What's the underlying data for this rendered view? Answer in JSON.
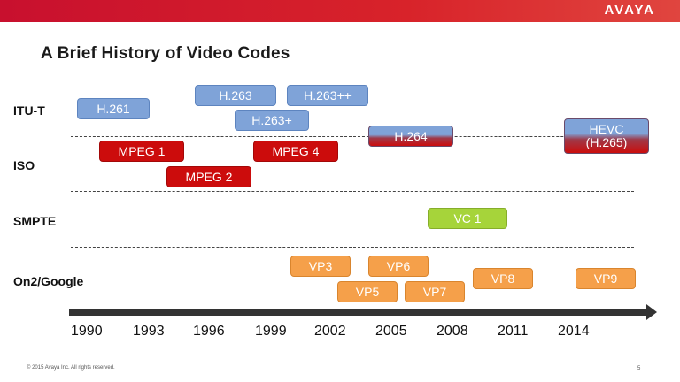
{
  "header": {
    "logo": "AVAYA"
  },
  "slide": {
    "title": "A Brief History of Video Codes"
  },
  "rows": {
    "itu": "ITU-T",
    "iso": "ISO",
    "smpte": "SMPTE",
    "google": "On2/Google"
  },
  "codecs": {
    "h261": "H.261",
    "h263": "H.263",
    "h263pp": "H.263++",
    "h263p": "H.263+",
    "h264": "H.264",
    "hevc_line1": "HEVC",
    "hevc_line2": "(H.265)",
    "mpeg1": "MPEG 1",
    "mpeg2": "MPEG 2",
    "mpeg4": "MPEG 4",
    "vc1": "VC 1",
    "vp3": "VP3",
    "vp5": "VP5",
    "vp6": "VP6",
    "vp7": "VP7",
    "vp8": "VP8",
    "vp9": "VP9"
  },
  "timeline": {
    "years": [
      "1990",
      "1993",
      "1996",
      "1999",
      "2002",
      "2005",
      "2008",
      "2011",
      "2014"
    ]
  },
  "colors": {
    "brand": "#cc0c0c",
    "itu": "#7fa3d8",
    "iso": "#cc0c0c",
    "smpte": "#a6d43a",
    "google": "#f5a04a",
    "arrow": "#333333"
  },
  "footer": {
    "copyright": "© 2015 Avaya Inc. All rights reserved.",
    "page": "5"
  }
}
